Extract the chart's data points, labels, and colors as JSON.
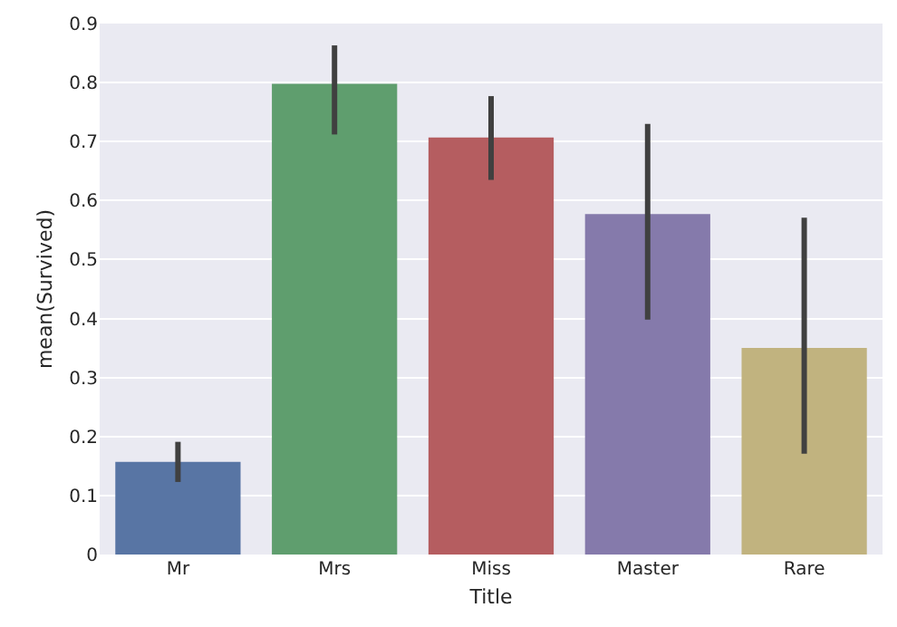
{
  "chart_data": {
    "type": "bar",
    "xlabel": "Title",
    "ylabel": "mean(Survived)",
    "categories": [
      "Mr",
      "Mrs",
      "Miss",
      "Master",
      "Rare"
    ],
    "values": [
      0.157,
      0.798,
      0.707,
      0.577,
      0.35
    ],
    "colors": [
      "#5875a4",
      "#5f9e6e",
      "#b55d60",
      "#857aab",
      "#c1b37f"
    ],
    "errors": [
      [
        0.123,
        0.191
      ],
      [
        0.712,
        0.863
      ],
      [
        0.635,
        0.777
      ],
      [
        0.398,
        0.73
      ],
      [
        0.171,
        0.571
      ]
    ],
    "ylim": [
      0,
      0.9
    ],
    "yticks": [
      0,
      0.1,
      0.2,
      0.3,
      0.4,
      0.5,
      0.6,
      0.7,
      0.8,
      0.9
    ],
    "grid": "y"
  }
}
